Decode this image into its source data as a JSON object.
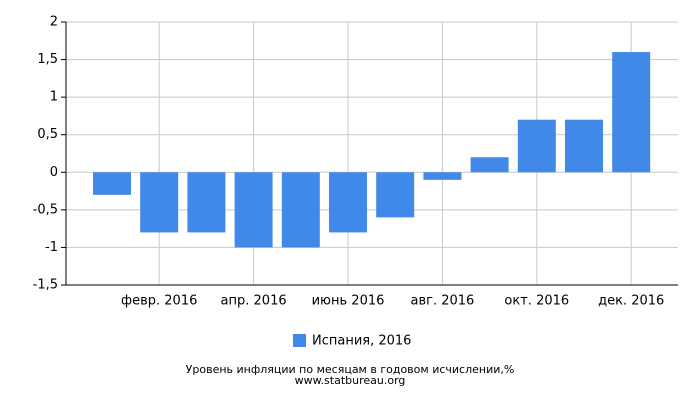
{
  "chart_data": {
    "type": "bar",
    "title": "Уровень инфляции по месяцам в годовом исчислении,%",
    "subtitle": "www.statbureau.org",
    "categories": [
      null,
      "февр. 2016",
      null,
      "апр. 2016",
      null,
      "июнь 2016",
      null,
      "авг. 2016",
      null,
      "окт. 2016",
      null,
      "дек. 2016"
    ],
    "series": [
      {
        "name": "Испания, 2016",
        "color": "#4189e8",
        "values": [
          -0.3,
          -0.8,
          -0.8,
          -1.0,
          -1.0,
          -0.8,
          -0.6,
          -0.1,
          0.2,
          0.7,
          0.7,
          1.6
        ]
      }
    ],
    "ylim": [
      -1.5,
      2
    ],
    "yticks": [
      {
        "value": -1.5,
        "label": "-1,5"
      },
      -1,
      {
        "value": -0.5,
        "label": "-0,5"
      },
      0,
      {
        "value": 0.5,
        "label": "0,5"
      },
      1,
      {
        "value": 1.5,
        "label": "1,5"
      },
      2
    ],
    "grid": true
  }
}
